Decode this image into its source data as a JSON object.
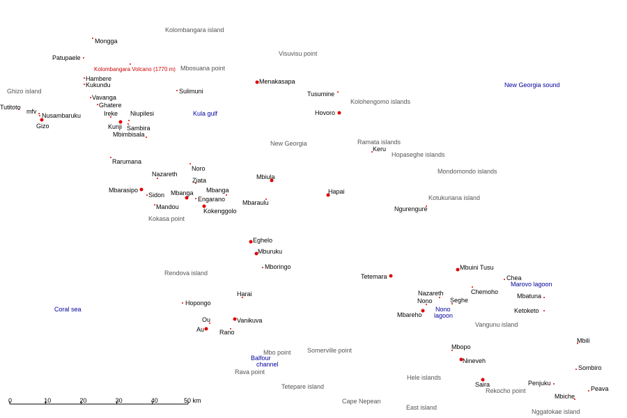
{
  "places": [
    "Mongga",
    "Patupaele",
    "Hambere",
    "Kukundu",
    "Vavanga",
    "Ghatere",
    "Tutitoto",
    "mfv",
    "Nusambaruku",
    "Gizo",
    "Ireke",
    "Niupilesi",
    "Kunji",
    "Sambira",
    "Mbimbisala",
    "Sulimuni",
    "Menakasapa",
    "Tusumine",
    "Hovoro",
    "Keru",
    "Rarumana",
    "Noro",
    "Nazareth",
    "Ziata",
    "Mbanga",
    "Mbiula",
    "Hapai",
    "Mbarasipo",
    "Sidon",
    "Mbanga",
    "Engarano",
    "Mbaraulu",
    "Mandou",
    "Kokenggolo",
    "Ngurengure",
    "Eghelo",
    "Mburuku",
    "Mboringo",
    "Tetemara",
    "Mbuini Tusu",
    "Chea",
    "Chemoho",
    "Mbatuna",
    "Nazareth",
    "Nono",
    "Seghe",
    "Ketoketo",
    "Mbareho",
    "Harai",
    "Hopongo",
    "Ou",
    "Vanikuva",
    "Au",
    "Rano",
    "Mbopo",
    "Nineveh",
    "Saira",
    "Penjuku",
    "Mbili",
    "Sombiro",
    "Peava",
    "Mbiche"
  ],
  "features": [
    "Kolombangara island",
    "Visuvisu point",
    "Mbosuana point",
    "Ghizo island",
    "Kolohengomo islands",
    "New Georgia",
    "Ramata islands",
    "Hopaseghe islands",
    "Mondomondo islands",
    "Kotukuriana island",
    "Kokasa point",
    "Rendova island",
    "Vangunu island",
    "Mbo point",
    "Somerville point",
    "Rava point",
    "Hele islands",
    "Tetepare island",
    "Rekocho point",
    "Cape Nepean",
    "East island",
    "Nggatokae island"
  ],
  "water": [
    [
      "New Georgia sound"
    ],
    [
      "Kula gulf"
    ],
    [
      "Coral sea"
    ],
    [
      "Marovo lagoon"
    ],
    [
      "Nono",
      "lagoon"
    ],
    [
      "Balfour",
      "channel"
    ]
  ],
  "volcano": "Kolombangara Volcano (1770 m)",
  "scale_bar": {
    "ticks": [
      0,
      10,
      20,
      30,
      40,
      {
        "value": 50,
        "label": "50 km"
      }
    ]
  }
}
